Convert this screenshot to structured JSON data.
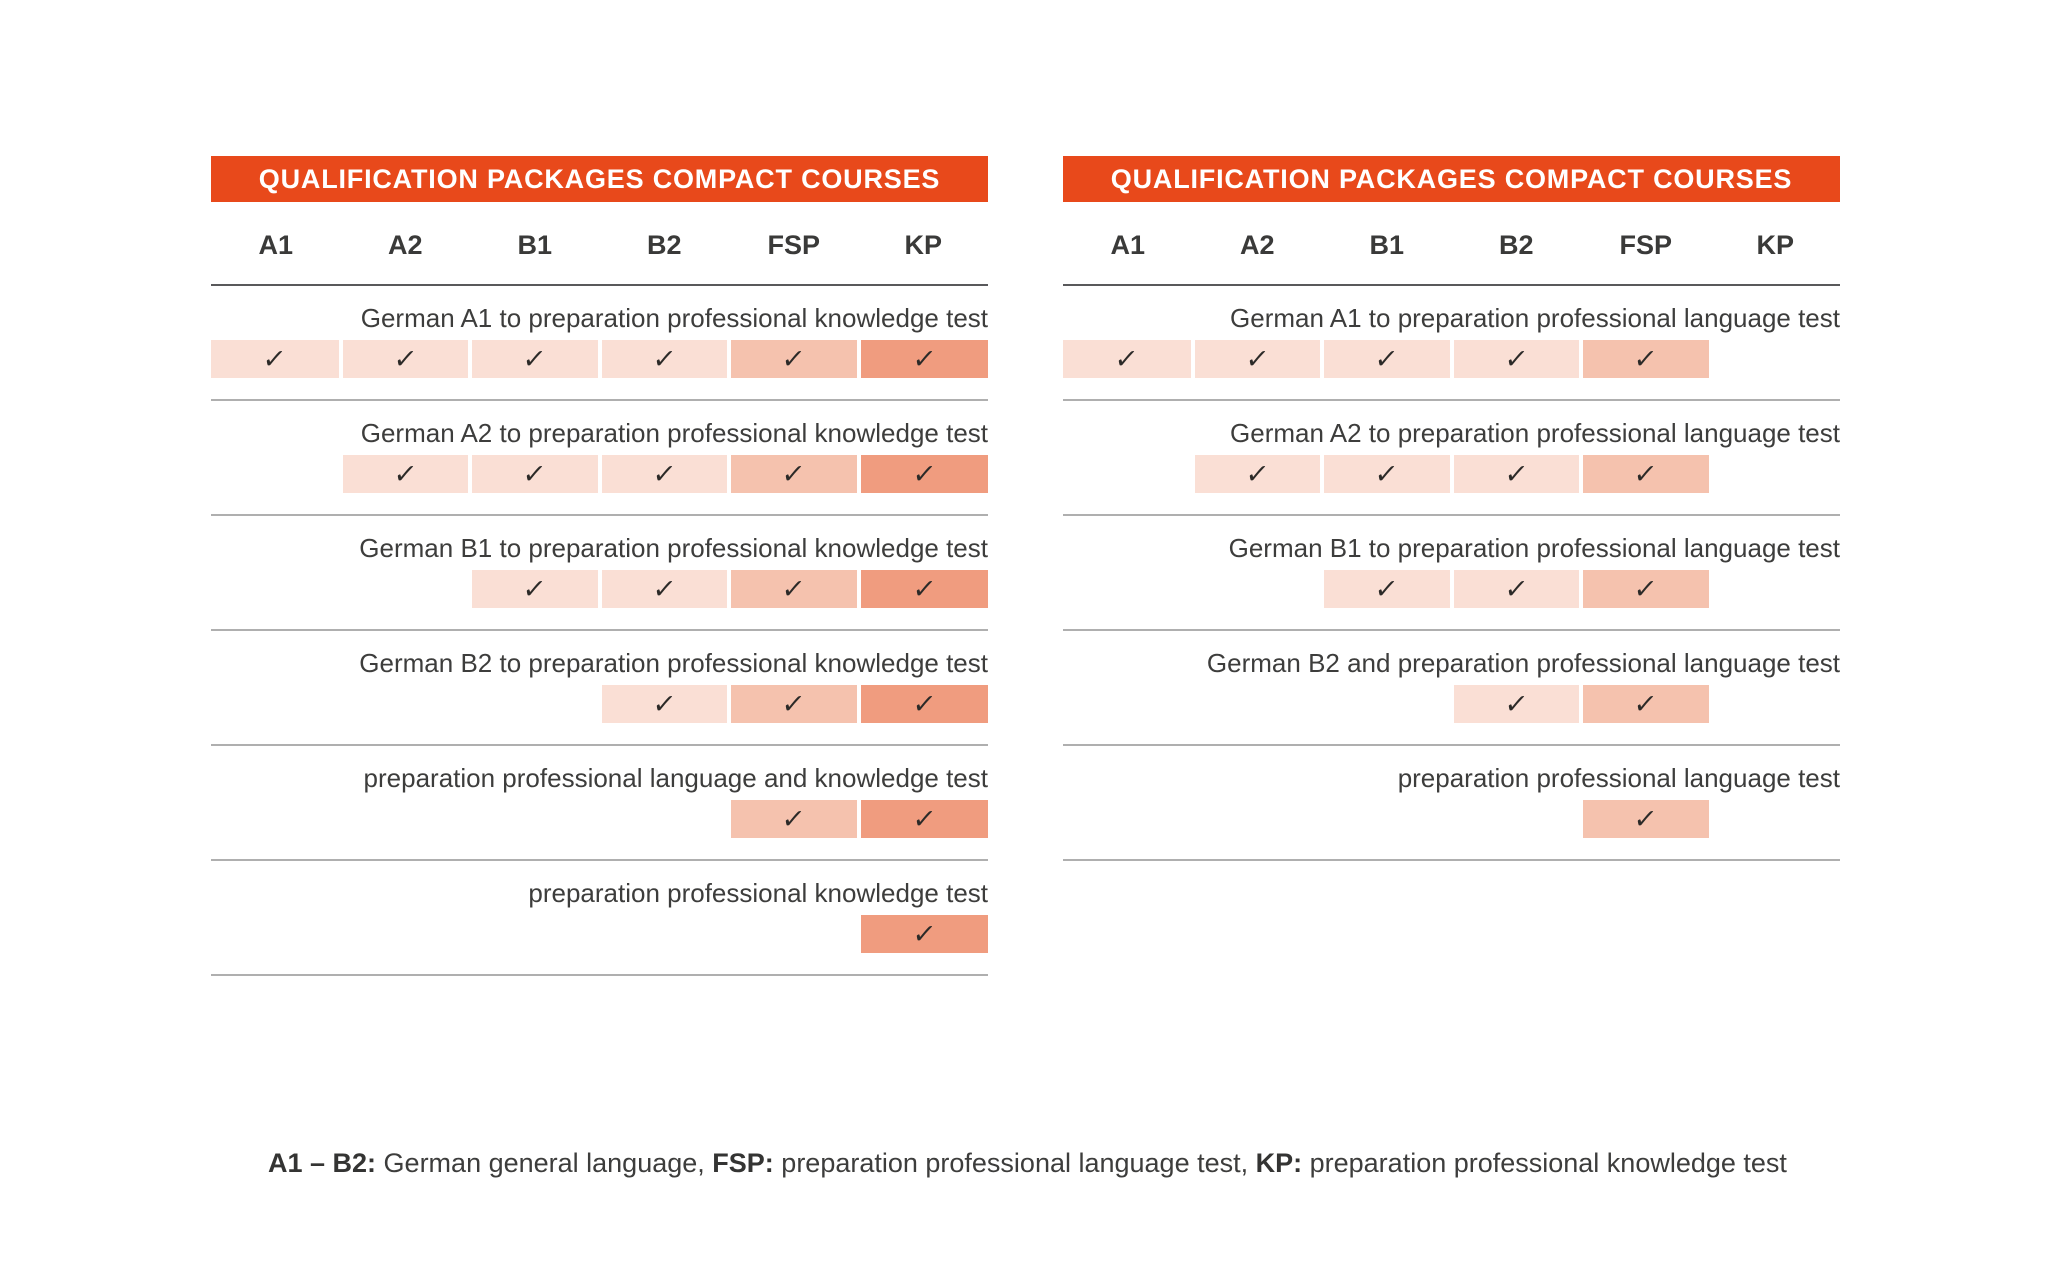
{
  "chart_data": [
    {
      "type": "table",
      "title": "QUALIFICATION PACKAGES COMPACT COURSES",
      "columns": [
        "A1",
        "A2",
        "B1",
        "B2",
        "FSP",
        "KP"
      ],
      "column_tones": [
        "light",
        "light",
        "light",
        "light",
        "mid",
        "dark"
      ],
      "rows": [
        {
          "label": "German A1 to preparation professional knowledge test",
          "checks": [
            1,
            1,
            1,
            1,
            1,
            1
          ]
        },
        {
          "label": "German A2 to preparation professional knowledge test",
          "checks": [
            0,
            1,
            1,
            1,
            1,
            1
          ]
        },
        {
          "label": "German B1 to preparation professional knowledge test",
          "checks": [
            0,
            0,
            1,
            1,
            1,
            1
          ]
        },
        {
          "label": "German B2 to preparation professional knowledge test",
          "checks": [
            0,
            0,
            0,
            1,
            1,
            1
          ]
        },
        {
          "label": "preparation professional language and knowledge test",
          "checks": [
            0,
            0,
            0,
            0,
            1,
            1
          ]
        },
        {
          "label": "preparation professional knowledge test",
          "checks": [
            0,
            0,
            0,
            0,
            0,
            1
          ]
        }
      ]
    },
    {
      "type": "table",
      "title": "QUALIFICATION PACKAGES COMPACT COURSES",
      "columns": [
        "A1",
        "A2",
        "B1",
        "B2",
        "FSP",
        "KP"
      ],
      "column_tones": [
        "light",
        "light",
        "light",
        "light",
        "mid",
        "dark"
      ],
      "rows": [
        {
          "label": "German A1 to preparation professional language test",
          "checks": [
            1,
            1,
            1,
            1,
            1,
            0
          ]
        },
        {
          "label": "German A2 to preparation professional language test",
          "checks": [
            0,
            1,
            1,
            1,
            1,
            0
          ]
        },
        {
          "label": "German B1 to preparation professional language test",
          "checks": [
            0,
            0,
            1,
            1,
            1,
            0
          ]
        },
        {
          "label": "German B2 and preparation professional language test",
          "checks": [
            0,
            0,
            0,
            1,
            1,
            0
          ]
        },
        {
          "label": "preparation professional language test",
          "checks": [
            0,
            0,
            0,
            0,
            1,
            0
          ]
        }
      ]
    }
  ],
  "legend": {
    "segments": [
      {
        "text": "A1 – B2:",
        "bold": true
      },
      {
        "text": " German general language, ",
        "bold": false
      },
      {
        "text": "FSP:",
        "bold": true
      },
      {
        "text": " preparation professional language test, ",
        "bold": false
      },
      {
        "text": "KP:",
        "bold": true
      },
      {
        "text": " preparation professional knowledge test",
        "bold": false
      }
    ]
  },
  "check_glyph": "✓",
  "colors": {
    "header_bg": "#E8491B",
    "cell_light": "#FADFD5",
    "cell_mid": "#F5C2AE",
    "cell_dark": "#F09C7F",
    "check": "#2C2A28",
    "text": "#3D3D3C",
    "rule_strong": "#59595B",
    "rule_light": "#AFAFAF"
  }
}
